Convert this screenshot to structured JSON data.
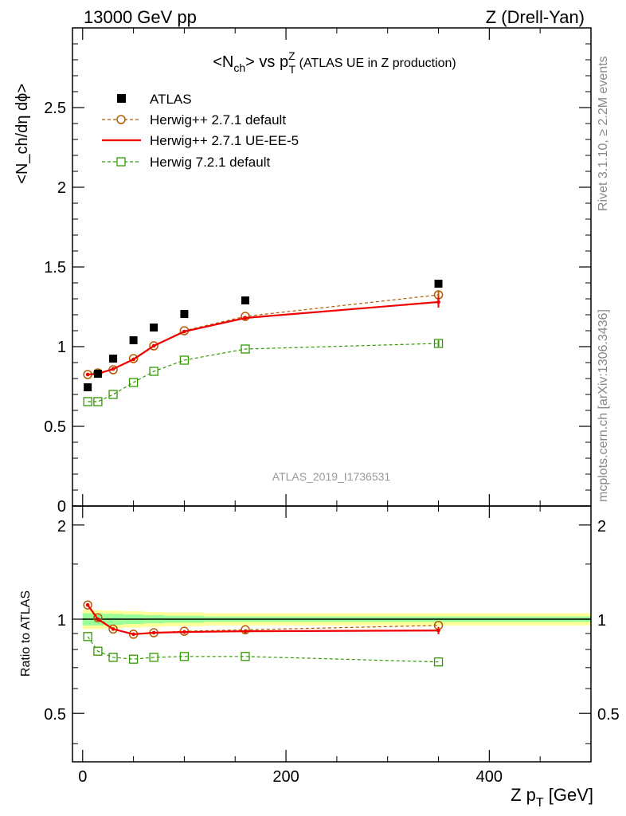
{
  "header": {
    "energy_label": "13000 GeV pp",
    "process_label": "Z (Drell-Yan)"
  },
  "side_labels": {
    "rivet": "Rivet 3.1.10, ≥ 2.2M events",
    "mcplots": "mcplots.cern.ch [arXiv:1306.3436]"
  },
  "chart_data": [
    {
      "type": "line",
      "panel": "main",
      "title": {
        "prefix": "<N",
        "sub1": "ch",
        "mid": "> vs p",
        "sup": "Z",
        "sub2": "T",
        "suffix": " (ATLAS UE in Z production)"
      },
      "ylabel": "<N_ch/dη dϕ>",
      "ylim": [
        0,
        3.0
      ],
      "xlim": [
        -10,
        500
      ],
      "yticks": [
        0,
        0.5,
        1,
        1.5,
        2,
        2.5
      ],
      "ytick_labels": [
        "0",
        "0.5",
        "1",
        "1.5",
        "2",
        "2.5"
      ],
      "watermark": "ATLAS_2019_I1736531",
      "legend_placement": "top-left",
      "series": [
        {
          "name": "ATLAS",
          "style": "data-squares",
          "color": "#000000",
          "x": [
            5,
            15,
            30,
            50,
            70,
            100,
            160,
            350
          ],
          "y": [
            0.745,
            0.83,
            0.925,
            1.04,
            1.12,
            1.205,
            1.29,
            1.395
          ]
        },
        {
          "name": "Herwig++ 2.7.1 default",
          "style": "dashed-circles",
          "color": "#b35900",
          "x": [
            5,
            15,
            30,
            50,
            70,
            100,
            160,
            350
          ],
          "y": [
            0.825,
            0.835,
            0.855,
            0.925,
            1.005,
            1.1,
            1.19,
            1.325
          ],
          "err": [
            0,
            0,
            0,
            0,
            0,
            0,
            0,
            0.025
          ]
        },
        {
          "name": "Herwig++ 2.7.1 UE-EE-5",
          "style": "solid",
          "color": "#ee0000",
          "x": [
            5,
            15,
            30,
            50,
            70,
            100,
            160,
            350
          ],
          "y": [
            0.825,
            0.83,
            0.86,
            0.92,
            1.005,
            1.095,
            1.18,
            1.28
          ],
          "err": [
            0,
            0,
            0,
            0,
            0,
            0,
            0,
            0.035
          ]
        },
        {
          "name": "Herwig 7.2.1 default",
          "style": "dashed-squares-open",
          "color": "#339900",
          "x": [
            5,
            15,
            30,
            50,
            70,
            100,
            160,
            350
          ],
          "y": [
            0.655,
            0.655,
            0.7,
            0.775,
            0.845,
            0.915,
            0.985,
            1.02
          ],
          "err": [
            0,
            0,
            0,
            0,
            0,
            0,
            0,
            0.02
          ]
        }
      ]
    },
    {
      "type": "line",
      "panel": "ratio",
      "ylabel": "Ratio to ATLAS",
      "xlabel": {
        "main": "Z p",
        "sub": "T",
        "unit": " [GeV]"
      },
      "ylim": [
        0.35,
        2.3
      ],
      "xlim": [
        -10,
        500
      ],
      "yticks": [
        0.5,
        1,
        2
      ],
      "ytick_labels": [
        "0.5",
        "1",
        "2"
      ],
      "xticks": [
        0,
        200,
        400
      ],
      "xtick_labels": [
        "0",
        "200",
        "400"
      ],
      "bands": {
        "x_edges": [
          0,
          10,
          20,
          40,
          60,
          80,
          120,
          200,
          500
        ],
        "yellow_halfwidth": [
          0.07,
          0.07,
          0.065,
          0.06,
          0.055,
          0.05,
          0.045,
          0.045
        ],
        "green_halfwidth": [
          0.045,
          0.045,
          0.04,
          0.035,
          0.03,
          0.025,
          0.02,
          0.02
        ],
        "yellow_color": "#ffff99",
        "green_color": "#99ff99"
      },
      "series": [
        {
          "name": "Herwig++ 2.7.1 default",
          "style": "dashed-circles",
          "color": "#b35900",
          "x": [
            5,
            15,
            30,
            50,
            70,
            100,
            160,
            350
          ],
          "y": [
            1.11,
            1.01,
            0.93,
            0.895,
            0.905,
            0.915,
            0.925,
            0.955
          ]
        },
        {
          "name": "Herwig++ 2.7.1 UE-EE-5",
          "style": "solid",
          "color": "#ee0000",
          "x": [
            5,
            15,
            30,
            50,
            70,
            100,
            160,
            350
          ],
          "y": [
            1.11,
            1.0,
            0.93,
            0.895,
            0.905,
            0.91,
            0.915,
            0.92
          ],
          "err": [
            0,
            0,
            0,
            0,
            0,
            0,
            0,
            0.025
          ]
        },
        {
          "name": "Herwig 7.2.1 default",
          "style": "dashed-squares-open",
          "color": "#339900",
          "x": [
            5,
            15,
            30,
            50,
            70,
            100,
            160,
            350
          ],
          "y": [
            0.88,
            0.79,
            0.755,
            0.745,
            0.755,
            0.76,
            0.76,
            0.73
          ]
        }
      ]
    }
  ]
}
